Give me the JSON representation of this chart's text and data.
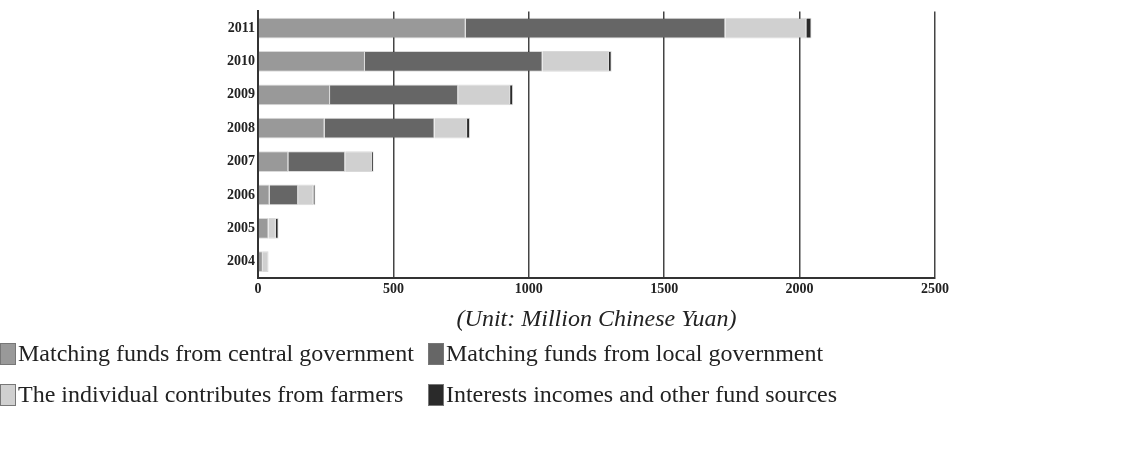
{
  "chart_data": {
    "type": "bar",
    "orientation": "horizontal",
    "stacked": true,
    "xlabel": "(Unit: Million Chinese Yuan)",
    "categories": [
      "2011",
      "2010",
      "2009",
      "2008",
      "2007",
      "2006",
      "2005",
      "2004"
    ],
    "series": [
      {
        "name": "Matching funds from central government",
        "color": "#999999",
        "values": [
          767,
          395,
          266,
          246,
          112,
          43,
          39,
          18
        ]
      },
      {
        "name": "Matching funds from local government",
        "color": "#666666",
        "values": [
          959,
          656,
          473,
          406,
          210,
          105,
          0,
          0
        ]
      },
      {
        "name": "The individual contributes from farmers",
        "color": "#d0d0d0",
        "values": [
          299,
          245,
          192,
          120,
          99,
          57,
          27,
          21
        ]
      },
      {
        "name": "Interests incomes and other fund sources",
        "color": "#2a2a2a",
        "values": [
          19,
          10,
          11,
          11,
          6,
          7,
          10,
          0
        ]
      }
    ],
    "xlim": [
      0,
      2500
    ],
    "xticks": [
      0,
      500,
      1000,
      1500,
      2000,
      2500
    ],
    "grid": "x",
    "legend": "bottom"
  }
}
